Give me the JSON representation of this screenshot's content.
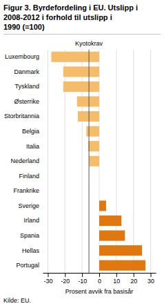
{
  "chart_data": {
    "type": "bar",
    "orientation": "horizontal",
    "title": "Figur 3. Byrdefordeling i EU. Utslipp i\n2008-2012 i forhold til utslipp i\n1990 (=100)",
    "categories": [
      "Luxembourg",
      "Danmark",
      "Tyskland",
      "Østerrike",
      "Storbritannia",
      "Belgia",
      "Italia",
      "Nederland",
      "Finland",
      "Frankrike",
      "Sverige",
      "Irland",
      "Spania",
      "Hellas",
      "Portugal"
    ],
    "values": [
      -28,
      -21,
      -21,
      -13,
      -12.5,
      -7.5,
      -6.5,
      -6,
      0,
      0,
      4,
      13,
      15,
      25,
      27
    ],
    "colors": [
      "#f5bc6a",
      "#f5bc6a",
      "#f5bc6a",
      "#f5bc6a",
      "#f5bc6a",
      "#f5bc6a",
      "#f5bc6a",
      "#f5bc6a",
      "#f5bc6a",
      "#f5bc6a",
      "#e07810",
      "#e07810",
      "#e07810",
      "#e07810",
      "#e07810"
    ],
    "xlabel": "Prosent avvik fra basisår",
    "xlim": [
      -33,
      33
    ],
    "xticks": [
      -30,
      -20,
      -10,
      0,
      10,
      20,
      30
    ],
    "grid": true,
    "annotations": [
      {
        "text": "Kyotokrav",
        "x": -6
      }
    ],
    "source": "Kilde: EU."
  }
}
